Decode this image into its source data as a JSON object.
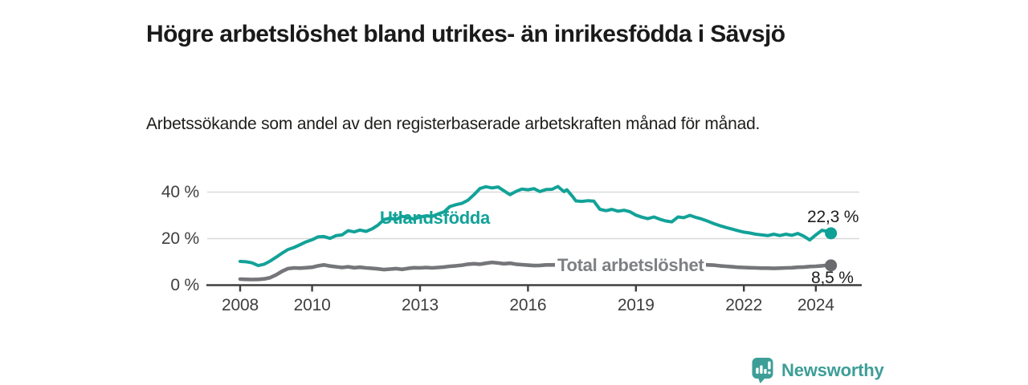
{
  "header": {
    "title": "Högre arbetslöshet bland utrikes- än inrikesfödda i Sävsjö",
    "subtitle": "Arbetssökande som andel av den registerbaserade arbetskraften månad för månad."
  },
  "footer": {
    "brand": "Newsworthy"
  },
  "colors": {
    "teal": "#12a298",
    "teal_dot": "#0fa195",
    "gray_line": "#75767a",
    "gray_dot": "#6a6b6e",
    "gray_label": "#7e8083",
    "axis": "#3f3f3f",
    "grid": "#d9d9da",
    "text": "#1a1a1a"
  },
  "chart_data": {
    "type": "line",
    "title": "Högre arbetslöshet bland utrikes- än inrikesfödda i Sävsjö",
    "subtitle": "Arbetssökande som andel av den registerbaserade arbetskraften månad för månad.",
    "xlabel": "",
    "ylabel": "",
    "unit": "%",
    "xlim": [
      2007.1,
      2025.3
    ],
    "ylim": [
      0,
      45
    ],
    "grid": "horizontal",
    "legend_position": "inline-labels-on-lines",
    "y_ticks": [
      {
        "v": 0,
        "label": "0 %"
      },
      {
        "v": 20,
        "label": "20 %"
      },
      {
        "v": 40,
        "label": "40 %"
      }
    ],
    "x_ticks": [
      {
        "v": 2008,
        "label": "2008"
      },
      {
        "v": 2010,
        "label": "2010"
      },
      {
        "v": 2013,
        "label": "2013"
      },
      {
        "v": 2016,
        "label": "2016"
      },
      {
        "v": 2019,
        "label": "2019"
      },
      {
        "v": 2022,
        "label": "2022"
      },
      {
        "v": 2024,
        "label": "2024"
      }
    ],
    "series": [
      {
        "name": "Utlandsfödda",
        "color": "#12a298",
        "end_label": "22,3 %",
        "end_value": 22.3,
        "points": [
          [
            2008.0,
            10.2
          ],
          [
            2008.17,
            10.05
          ],
          [
            2008.33,
            9.6
          ],
          [
            2008.5,
            8.4
          ],
          [
            2008.67,
            9.0
          ],
          [
            2008.83,
            10.3
          ],
          [
            2009.0,
            12.0
          ],
          [
            2009.17,
            13.8
          ],
          [
            2009.33,
            15.3
          ],
          [
            2009.5,
            16.2
          ],
          [
            2009.67,
            17.4
          ],
          [
            2009.83,
            18.6
          ],
          [
            2010.0,
            19.5
          ],
          [
            2010.17,
            20.8
          ],
          [
            2010.33,
            20.9
          ],
          [
            2010.5,
            20.1
          ],
          [
            2010.67,
            21.3
          ],
          [
            2010.83,
            21.6
          ],
          [
            2011.0,
            23.4
          ],
          [
            2011.17,
            22.9
          ],
          [
            2011.33,
            23.7
          ],
          [
            2011.5,
            23.1
          ],
          [
            2011.67,
            24.2
          ],
          [
            2011.83,
            25.8
          ],
          [
            2012.0,
            28.2
          ],
          [
            2012.17,
            28.8
          ],
          [
            2012.33,
            28.2
          ],
          [
            2012.5,
            29.6
          ],
          [
            2012.67,
            29.0
          ],
          [
            2012.83,
            28.4
          ],
          [
            2013.0,
            29.3
          ],
          [
            2013.17,
            29.8
          ],
          [
            2013.33,
            29.5
          ],
          [
            2013.5,
            30.6
          ],
          [
            2013.67,
            31.5
          ],
          [
            2013.83,
            33.8
          ],
          [
            2014.0,
            34.6
          ],
          [
            2014.17,
            35.2
          ],
          [
            2014.33,
            36.5
          ],
          [
            2014.5,
            38.9
          ],
          [
            2014.67,
            41.6
          ],
          [
            2014.83,
            42.3
          ],
          [
            2015.0,
            41.8
          ],
          [
            2015.17,
            42.2
          ],
          [
            2015.33,
            40.6
          ],
          [
            2015.5,
            38.9
          ],
          [
            2015.67,
            40.3
          ],
          [
            2015.83,
            41.3
          ],
          [
            2016.0,
            41.0
          ],
          [
            2016.17,
            41.5
          ],
          [
            2016.33,
            40.2
          ],
          [
            2016.5,
            41.1
          ],
          [
            2016.67,
            41.2
          ],
          [
            2016.83,
            42.4
          ],
          [
            2017.0,
            40.2
          ],
          [
            2017.08,
            41.0
          ],
          [
            2017.25,
            37.9
          ],
          [
            2017.33,
            36.2
          ],
          [
            2017.5,
            36.0
          ],
          [
            2017.67,
            36.3
          ],
          [
            2017.83,
            36.1
          ],
          [
            2018.0,
            32.6
          ],
          [
            2018.17,
            32.0
          ],
          [
            2018.33,
            32.6
          ],
          [
            2018.5,
            31.8
          ],
          [
            2018.67,
            32.2
          ],
          [
            2018.83,
            31.6
          ],
          [
            2019.0,
            30.1
          ],
          [
            2019.17,
            29.2
          ],
          [
            2019.33,
            28.6
          ],
          [
            2019.5,
            29.3
          ],
          [
            2019.67,
            28.3
          ],
          [
            2019.83,
            27.6
          ],
          [
            2020.0,
            27.2
          ],
          [
            2020.17,
            29.3
          ],
          [
            2020.33,
            29.0
          ],
          [
            2020.5,
            30.0
          ],
          [
            2020.67,
            29.1
          ],
          [
            2020.83,
            28.4
          ],
          [
            2021.0,
            27.5
          ],
          [
            2021.17,
            26.4
          ],
          [
            2021.33,
            25.6
          ],
          [
            2021.5,
            24.8
          ],
          [
            2021.67,
            24.1
          ],
          [
            2021.83,
            23.4
          ],
          [
            2022.0,
            22.8
          ],
          [
            2022.17,
            22.4
          ],
          [
            2022.33,
            21.9
          ],
          [
            2022.5,
            21.6
          ],
          [
            2022.67,
            21.3
          ],
          [
            2022.83,
            21.9
          ],
          [
            2023.0,
            21.3
          ],
          [
            2023.17,
            21.9
          ],
          [
            2023.33,
            21.4
          ],
          [
            2023.5,
            22.2
          ],
          [
            2023.67,
            21.0
          ],
          [
            2023.83,
            19.4
          ],
          [
            2024.0,
            21.6
          ],
          [
            2024.17,
            23.6
          ],
          [
            2024.33,
            23.1
          ],
          [
            2024.42,
            22.3
          ]
        ]
      },
      {
        "name": "Total arbetslöshet",
        "color": "#75767a",
        "end_label": "8,5 %",
        "end_value": 8.5,
        "points": [
          [
            2008.0,
            2.6
          ],
          [
            2008.17,
            2.5
          ],
          [
            2008.33,
            2.4
          ],
          [
            2008.5,
            2.5
          ],
          [
            2008.67,
            2.7
          ],
          [
            2008.83,
            3.2
          ],
          [
            2009.0,
            4.4
          ],
          [
            2009.17,
            6.0
          ],
          [
            2009.33,
            7.1
          ],
          [
            2009.5,
            7.4
          ],
          [
            2009.67,
            7.3
          ],
          [
            2009.83,
            7.5
          ],
          [
            2010.0,
            7.7
          ],
          [
            2010.17,
            8.3
          ],
          [
            2010.33,
            8.7
          ],
          [
            2010.5,
            8.2
          ],
          [
            2010.67,
            7.9
          ],
          [
            2010.83,
            7.6
          ],
          [
            2011.0,
            7.9
          ],
          [
            2011.17,
            7.5
          ],
          [
            2011.33,
            7.7
          ],
          [
            2011.5,
            7.4
          ],
          [
            2011.67,
            7.2
          ],
          [
            2011.83,
            7.0
          ],
          [
            2012.0,
            6.7
          ],
          [
            2012.17,
            6.9
          ],
          [
            2012.33,
            7.1
          ],
          [
            2012.5,
            6.8
          ],
          [
            2012.67,
            7.2
          ],
          [
            2012.83,
            7.5
          ],
          [
            2013.0,
            7.4
          ],
          [
            2013.17,
            7.6
          ],
          [
            2013.33,
            7.4
          ],
          [
            2013.5,
            7.6
          ],
          [
            2013.67,
            7.8
          ],
          [
            2013.83,
            8.1
          ],
          [
            2014.0,
            8.3
          ],
          [
            2014.17,
            8.6
          ],
          [
            2014.33,
            9.0
          ],
          [
            2014.5,
            9.2
          ],
          [
            2014.67,
            9.0
          ],
          [
            2014.83,
            9.4
          ],
          [
            2015.0,
            9.8
          ],
          [
            2015.17,
            9.5
          ],
          [
            2015.33,
            9.2
          ],
          [
            2015.5,
            9.4
          ],
          [
            2015.67,
            9.0
          ],
          [
            2015.83,
            8.8
          ],
          [
            2016.0,
            8.6
          ],
          [
            2016.17,
            8.4
          ],
          [
            2016.33,
            8.5
          ],
          [
            2016.5,
            8.7
          ],
          [
            2016.67,
            8.7
          ],
          [
            2017.0,
            8.8
          ],
          [
            2017.33,
            8.6
          ],
          [
            2017.67,
            8.7
          ],
          [
            2018.0,
            8.7
          ],
          [
            2018.33,
            8.5
          ],
          [
            2018.67,
            8.6
          ],
          [
            2019.0,
            8.6
          ],
          [
            2019.33,
            8.4
          ],
          [
            2019.67,
            8.5
          ],
          [
            2020.0,
            8.5
          ],
          [
            2020.33,
            8.8
          ],
          [
            2020.67,
            9.0
          ],
          [
            2021.0,
            8.7
          ],
          [
            2021.17,
            8.6
          ],
          [
            2021.33,
            8.3
          ],
          [
            2021.5,
            8.1
          ],
          [
            2021.67,
            7.9
          ],
          [
            2021.83,
            7.7
          ],
          [
            2022.0,
            7.6
          ],
          [
            2022.17,
            7.5
          ],
          [
            2022.33,
            7.4
          ],
          [
            2022.5,
            7.3
          ],
          [
            2022.67,
            7.3
          ],
          [
            2022.83,
            7.2
          ],
          [
            2023.0,
            7.3
          ],
          [
            2023.17,
            7.4
          ],
          [
            2023.33,
            7.5
          ],
          [
            2023.5,
            7.7
          ],
          [
            2023.67,
            7.8
          ],
          [
            2023.83,
            8.0
          ],
          [
            2024.0,
            8.1
          ],
          [
            2024.17,
            8.3
          ],
          [
            2024.33,
            8.6
          ],
          [
            2024.42,
            8.5
          ]
        ]
      }
    ]
  }
}
